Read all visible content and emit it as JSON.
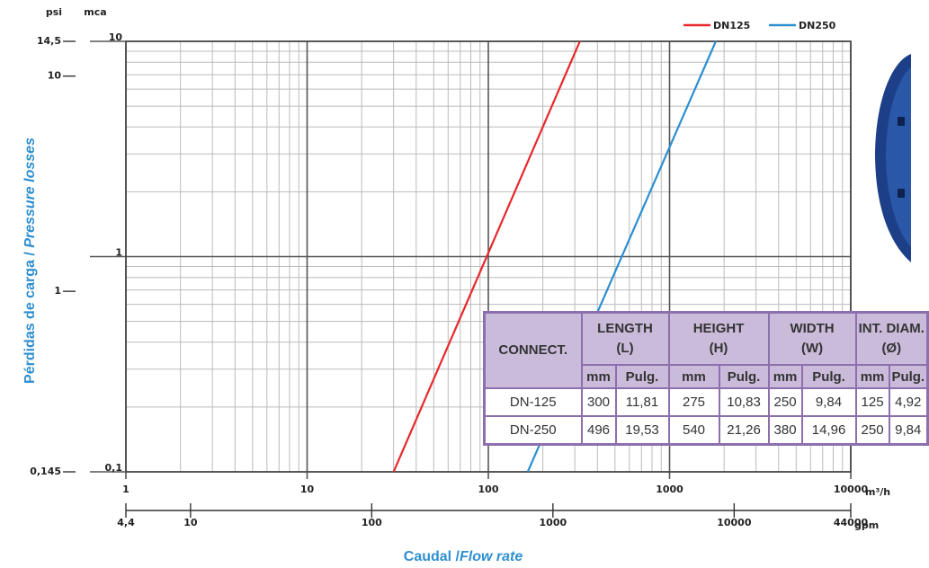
{
  "chart_data": {
    "type": "line",
    "log_x": true,
    "log_y": true,
    "grid": true,
    "y_label": "Pérdidas de carga / ",
    "y_label_italic": "Pressure losses",
    "x_label": "Caudal /",
    "x_label_italic": "Flow rate",
    "x_unit": "m³/h",
    "x2_unit": "gpm",
    "y_unit": "mca",
    "y2_unit": "psi",
    "xlim": [
      1,
      10000
    ],
    "xticks": [
      1,
      10,
      100,
      1000,
      10000
    ],
    "ylim": [
      0.1,
      10
    ],
    "yticks": [
      {
        "value": 0.1,
        "label": "0,1"
      },
      1,
      10
    ],
    "y2lim": [
      0.145,
      14.5
    ],
    "y2ticks": [
      {
        "value": 0.145,
        "label": "0,145"
      },
      1,
      10,
      {
        "value": 14.5,
        "label": "14,5"
      }
    ],
    "x2lim": [
      4.4,
      44000
    ],
    "x2ticks": [
      {
        "value": 4.4,
        "label": "4,4"
      },
      10,
      100,
      1000,
      10000,
      44000
    ],
    "legend": "top-right",
    "series": [
      {
        "name": "DN125",
        "color": "#e8282b",
        "x": [
          30,
          320
        ],
        "values": [
          0.1,
          10
        ]
      },
      {
        "name": "DN250",
        "color": "#2b8fd0",
        "x": [
          165,
          1800
        ],
        "values": [
          0.1,
          10
        ]
      }
    ]
  },
  "table": {
    "groups": [
      {
        "label": "CONNECT."
      },
      {
        "label": "LENGTH",
        "sub": "(L)"
      },
      {
        "label": "HEIGHT",
        "sub": "(H)"
      },
      {
        "label": "WIDTH",
        "sub": "(W)"
      },
      {
        "label": "INT. DIAM.",
        "sub": "(Ø)"
      }
    ],
    "units": [
      "mm",
      "Pulg.",
      "mm",
      "Pulg.",
      "mm",
      "Pulg.",
      "mm",
      "Pulg."
    ],
    "rows": [
      [
        "DN-125",
        "300",
        "11,81",
        "275",
        "10,83",
        "250",
        "9,84",
        "125",
        "4,92"
      ],
      [
        "DN-250",
        "496",
        "19,53",
        "540",
        "21,26",
        "380",
        "14,96",
        "250",
        "9,84"
      ]
    ]
  }
}
